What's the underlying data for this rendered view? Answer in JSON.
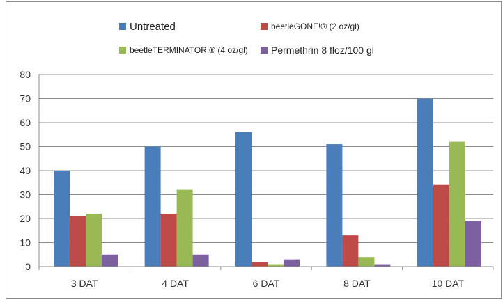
{
  "chart_data": {
    "type": "bar",
    "categories": [
      "3 DAT",
      "4 DAT",
      "6 DAT",
      "8 DAT",
      "10 DAT"
    ],
    "series": [
      {
        "name": "Untreated",
        "color": "#4a7ebb",
        "values": [
          40,
          50,
          56,
          51,
          70
        ]
      },
      {
        "name": "beetleGONE!® (2 oz/gl)",
        "color": "#be4b48",
        "values": [
          21,
          22,
          2,
          13,
          34
        ]
      },
      {
        "name": "beetleTERMINATOR!® (4 oz/gl)",
        "color": "#98b954",
        "values": [
          22,
          32,
          1,
          4,
          52
        ]
      },
      {
        "name": "Permethrin 8 floz/100 gl",
        "color": "#7d60a0",
        "values": [
          5,
          5,
          3,
          1,
          19
        ]
      }
    ],
    "yticks": [
      "0",
      "10",
      "20",
      "30",
      "40",
      "50",
      "60",
      "70",
      "80"
    ],
    "ylim": [
      0,
      80
    ],
    "grid": true,
    "legend_position": "top",
    "title": "",
    "xlabel": "",
    "ylabel": ""
  }
}
